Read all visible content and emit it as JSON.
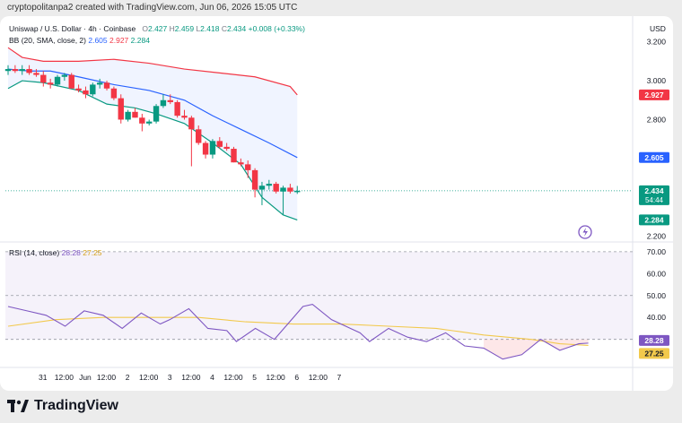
{
  "header": {
    "created_by": "cryptopolitanpa2 created with TradingView.com, Jun 06, 2026 15:05 UTC"
  },
  "legend": {
    "symbol": "Uniswap / U.S. Dollar · 4h · Coinbase",
    "o_label": "O",
    "o_value": "2.427",
    "h_label": "H",
    "h_value": "2.459",
    "l_label": "L",
    "l_value": "2.418",
    "c_label": "C",
    "c_value": "2.434",
    "change": "+0.008 (+0.33%)",
    "bb_label": "BB (20, SMA, close, 2)",
    "bb_basis": "2.605",
    "bb_upper": "2.927",
    "bb_lower": "2.284",
    "rsi_label": "RSI (14, close)",
    "rsi_value": "28.28",
    "rsi_ma": "27.25"
  },
  "footer": {
    "brand": "TradingView"
  },
  "colors": {
    "up": "#089981",
    "down": "#f23645",
    "basis": "#2962ff",
    "upper": "#f23645",
    "lower": "#089981",
    "band_fill": "#2962ff",
    "rsi": "#7e57c2",
    "rsi_ma": "#f2c94c"
  },
  "chart_data": [
    {
      "type": "candlestick",
      "currency": "USD",
      "ylim": [
        2.18,
        3.24
      ],
      "price_ticks": [
        "3.200",
        "3.000",
        "2.800",
        "2.200"
      ],
      "time_ticks": [
        {
          "i": 3,
          "label": "31"
        },
        {
          "i": 9,
          "label": "12:00"
        },
        {
          "i": 15,
          "label": "Jun"
        },
        {
          "i": 21,
          "label": "12:00"
        },
        {
          "i": 27,
          "label": "2"
        },
        {
          "i": 33,
          "label": "12:00"
        },
        {
          "i": 39,
          "label": "3"
        },
        {
          "i": 45,
          "label": "12:00"
        },
        {
          "i": 51,
          "label": "4"
        },
        {
          "i": 57,
          "label": "12:00"
        },
        {
          "i": 63,
          "label": "5"
        },
        {
          "i": 69,
          "label": "12:00"
        },
        {
          "i": 75,
          "label": "6"
        },
        {
          "i": 81,
          "label": "12:00"
        },
        {
          "i": 87,
          "label": "7"
        }
      ],
      "last_price_label": "2.434",
      "countdown_label": "54:44",
      "price_labels": [
        {
          "value": 2.927,
          "text": "2.927",
          "color": "#f23645"
        },
        {
          "value": 2.605,
          "text": "2.605",
          "color": "#2962ff"
        },
        {
          "value": 2.434,
          "text": "2.434",
          "color": "#089981"
        },
        {
          "value": 2.284,
          "text": "2.284",
          "color": "#089981"
        }
      ],
      "candles": [
        {
          "i": 0,
          "o": 3.05,
          "h": 3.08,
          "l": 3.03,
          "c": 3.06
        },
        {
          "i": 2,
          "o": 3.06,
          "h": 3.08,
          "l": 3.04,
          "c": 3.05
        },
        {
          "i": 4,
          "o": 3.05,
          "h": 3.08,
          "l": 3.03,
          "c": 3.06
        },
        {
          "i": 6,
          "o": 3.06,
          "h": 3.08,
          "l": 3.03,
          "c": 3.04
        },
        {
          "i": 8,
          "o": 3.04,
          "h": 3.06,
          "l": 3.02,
          "c": 3.03
        },
        {
          "i": 10,
          "o": 3.03,
          "h": 3.05,
          "l": 2.97,
          "c": 2.99
        },
        {
          "i": 12,
          "o": 2.99,
          "h": 3.01,
          "l": 2.96,
          "c": 2.98
        },
        {
          "i": 14,
          "o": 2.98,
          "h": 3.03,
          "l": 2.97,
          "c": 3.02
        },
        {
          "i": 16,
          "o": 3.02,
          "h": 3.04,
          "l": 3.0,
          "c": 3.03
        },
        {
          "i": 18,
          "o": 3.03,
          "h": 3.04,
          "l": 2.96,
          "c": 2.96
        },
        {
          "i": 20,
          "o": 2.96,
          "h": 2.98,
          "l": 2.94,
          "c": 2.95
        },
        {
          "i": 22,
          "o": 2.95,
          "h": 2.97,
          "l": 2.91,
          "c": 2.93
        },
        {
          "i": 24,
          "o": 2.93,
          "h": 2.99,
          "l": 2.92,
          "c": 2.98
        },
        {
          "i": 26,
          "o": 2.98,
          "h": 3.01,
          "l": 2.96,
          "c": 2.99
        },
        {
          "i": 28,
          "o": 2.99,
          "h": 3.0,
          "l": 2.95,
          "c": 2.96
        },
        {
          "i": 30,
          "o": 2.96,
          "h": 2.97,
          "l": 2.9,
          "c": 2.91
        },
        {
          "i": 32,
          "o": 2.91,
          "h": 2.93,
          "l": 2.78,
          "c": 2.8
        },
        {
          "i": 34,
          "o": 2.8,
          "h": 2.85,
          "l": 2.79,
          "c": 2.84
        },
        {
          "i": 36,
          "o": 2.84,
          "h": 2.86,
          "l": 2.81,
          "c": 2.81
        },
        {
          "i": 38,
          "o": 2.81,
          "h": 2.83,
          "l": 2.74,
          "c": 2.78
        },
        {
          "i": 40,
          "o": 2.78,
          "h": 2.8,
          "l": 2.77,
          "c": 2.79
        },
        {
          "i": 42,
          "o": 2.79,
          "h": 2.88,
          "l": 2.78,
          "c": 2.87
        },
        {
          "i": 44,
          "o": 2.87,
          "h": 2.93,
          "l": 2.86,
          "c": 2.9
        },
        {
          "i": 46,
          "o": 2.9,
          "h": 2.93,
          "l": 2.88,
          "c": 2.89
        },
        {
          "i": 48,
          "o": 2.89,
          "h": 2.9,
          "l": 2.81,
          "c": 2.82
        },
        {
          "i": 50,
          "o": 2.82,
          "h": 2.85,
          "l": 2.8,
          "c": 2.81
        },
        {
          "i": 52,
          "o": 2.81,
          "h": 2.82,
          "l": 2.56,
          "c": 2.75
        },
        {
          "i": 54,
          "o": 2.75,
          "h": 2.77,
          "l": 2.67,
          "c": 2.68
        },
        {
          "i": 56,
          "o": 2.68,
          "h": 2.69,
          "l": 2.6,
          "c": 2.62
        },
        {
          "i": 58,
          "o": 2.62,
          "h": 2.7,
          "l": 2.6,
          "c": 2.69
        },
        {
          "i": 60,
          "o": 2.69,
          "h": 2.71,
          "l": 2.65,
          "c": 2.66
        },
        {
          "i": 62,
          "o": 2.66,
          "h": 2.68,
          "l": 2.64,
          "c": 2.65
        },
        {
          "i": 64,
          "o": 2.65,
          "h": 2.66,
          "l": 2.58,
          "c": 2.58
        },
        {
          "i": 66,
          "o": 2.58,
          "h": 2.6,
          "l": 2.56,
          "c": 2.57
        },
        {
          "i": 68,
          "o": 2.57,
          "h": 2.59,
          "l": 2.5,
          "c": 2.54
        },
        {
          "i": 70,
          "o": 2.54,
          "h": 2.55,
          "l": 2.4,
          "c": 2.44
        },
        {
          "i": 72,
          "o": 2.44,
          "h": 2.48,
          "l": 2.36,
          "c": 2.46
        },
        {
          "i": 74,
          "o": 2.46,
          "h": 2.49,
          "l": 2.44,
          "c": 2.47
        },
        {
          "i": 76,
          "o": 2.47,
          "h": 2.48,
          "l": 2.42,
          "c": 2.43
        },
        {
          "i": 78,
          "o": 2.43,
          "h": 2.46,
          "l": 2.31,
          "c": 2.45
        },
        {
          "i": 80,
          "o": 2.45,
          "h": 2.47,
          "l": 2.42,
          "c": 2.43
        },
        {
          "i": 82,
          "o": 2.427,
          "h": 2.459,
          "l": 2.418,
          "c": 2.434
        }
      ],
      "bb_upper": [
        {
          "i": 0,
          "v": 3.17
        },
        {
          "i": 4,
          "v": 3.12
        },
        {
          "i": 10,
          "v": 3.1
        },
        {
          "i": 20,
          "v": 3.1
        },
        {
          "i": 30,
          "v": 3.11
        },
        {
          "i": 40,
          "v": 3.09
        },
        {
          "i": 50,
          "v": 3.06
        },
        {
          "i": 60,
          "v": 3.04
        },
        {
          "i": 70,
          "v": 3.02
        },
        {
          "i": 80,
          "v": 2.97
        },
        {
          "i": 82,
          "v": 2.927
        }
      ],
      "bb_basis": [
        {
          "i": 0,
          "v": 3.06
        },
        {
          "i": 6,
          "v": 3.05
        },
        {
          "i": 12,
          "v": 3.05
        },
        {
          "i": 20,
          "v": 3.02
        },
        {
          "i": 30,
          "v": 2.98
        },
        {
          "i": 40,
          "v": 2.95
        },
        {
          "i": 50,
          "v": 2.9
        },
        {
          "i": 58,
          "v": 2.82
        },
        {
          "i": 66,
          "v": 2.75
        },
        {
          "i": 74,
          "v": 2.68
        },
        {
          "i": 82,
          "v": 2.605
        }
      ],
      "bb_lower": [
        {
          "i": 0,
          "v": 2.96
        },
        {
          "i": 4,
          "v": 3.0
        },
        {
          "i": 10,
          "v": 2.99
        },
        {
          "i": 20,
          "v": 2.95
        },
        {
          "i": 28,
          "v": 2.88
        },
        {
          "i": 36,
          "v": 2.86
        },
        {
          "i": 42,
          "v": 2.83
        },
        {
          "i": 50,
          "v": 2.78
        },
        {
          "i": 58,
          "v": 2.68
        },
        {
          "i": 66,
          "v": 2.57
        },
        {
          "i": 72,
          "v": 2.4
        },
        {
          "i": 78,
          "v": 2.31
        },
        {
          "i": 82,
          "v": 2.284
        }
      ]
    },
    {
      "type": "line",
      "title": "RSI (14, close)",
      "ylim": [
        18,
        72
      ],
      "ticks": [
        "70.00",
        "60.00",
        "50.00",
        "40.00"
      ],
      "bands": [
        70,
        50,
        30
      ],
      "value_labels": [
        {
          "value": 28.28,
          "text": "28.28",
          "color": "#7e57c2"
        },
        {
          "value": 27.25,
          "text": "27.25",
          "color": "#f2c94c"
        }
      ],
      "series": [
        {
          "values": [
            {
              "i": 0,
              "v": 45
            },
            {
              "i": 4,
              "v": 43
            },
            {
              "i": 8,
              "v": 41
            },
            {
              "i": 12,
              "v": 36
            },
            {
              "i": 16,
              "v": 43
            },
            {
              "i": 20,
              "v": 41
            },
            {
              "i": 24,
              "v": 35
            },
            {
              "i": 28,
              "v": 42
            },
            {
              "i": 32,
              "v": 37
            },
            {
              "i": 34,
              "v": 39
            },
            {
              "i": 38,
              "v": 44
            },
            {
              "i": 42,
              "v": 35
            },
            {
              "i": 46,
              "v": 34
            },
            {
              "i": 48,
              "v": 29
            },
            {
              "i": 52,
              "v": 35
            },
            {
              "i": 56,
              "v": 30
            },
            {
              "i": 60,
              "v": 40
            },
            {
              "i": 62,
              "v": 45
            },
            {
              "i": 64,
              "v": 46
            },
            {
              "i": 68,
              "v": 39
            },
            {
              "i": 72,
              "v": 35
            },
            {
              "i": 74,
              "v": 33
            },
            {
              "i": 76,
              "v": 29
            },
            {
              "i": 80,
              "v": 35
            },
            {
              "i": 84,
              "v": 31
            },
            {
              "i": 88,
              "v": 29
            },
            {
              "i": 92,
              "v": 33
            },
            {
              "i": 96,
              "v": 27
            },
            {
              "i": 100,
              "v": 26
            },
            {
              "i": 104,
              "v": 21
            },
            {
              "i": 108,
              "v": 23
            },
            {
              "i": 112,
              "v": 30
            },
            {
              "i": 116,
              "v": 25
            },
            {
              "i": 120,
              "v": 28
            },
            {
              "i": 122,
              "v": 28.28
            }
          ]
        },
        {
          "values": [
            {
              "i": 0,
              "v": 36
            },
            {
              "i": 10,
              "v": 39
            },
            {
              "i": 20,
              "v": 40
            },
            {
              "i": 30,
              "v": 40
            },
            {
              "i": 40,
              "v": 40
            },
            {
              "i": 50,
              "v": 38
            },
            {
              "i": 60,
              "v": 37
            },
            {
              "i": 70,
              "v": 37
            },
            {
              "i": 80,
              "v": 36
            },
            {
              "i": 90,
              "v": 35
            },
            {
              "i": 100,
              "v": 32
            },
            {
              "i": 110,
              "v": 30
            },
            {
              "i": 116,
              "v": 28
            },
            {
              "i": 122,
              "v": 27.25
            }
          ]
        }
      ]
    }
  ]
}
